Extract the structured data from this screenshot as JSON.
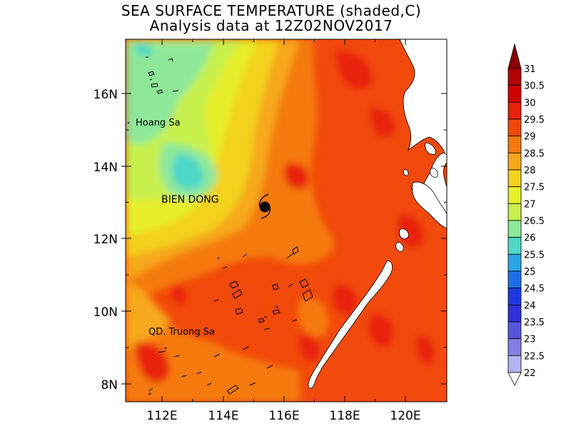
{
  "title": {
    "line1": "SEA SURFACE TEMPERATURE (shaded,C)",
    "line2": "Analysis data at 12Z02NOV2017"
  },
  "map": {
    "x_ticks": [
      "112E",
      "114E",
      "116E",
      "118E",
      "120E"
    ],
    "y_ticks": [
      "16N",
      "14N",
      "12N",
      "10N",
      "8N"
    ],
    "x_range_deg": [
      110.85,
      121.4
    ],
    "y_range_deg": [
      7.5,
      17.6
    ],
    "places": {
      "hoang_sa": "Hoang Sa",
      "bien_dong": "BIEN DONG",
      "truong_sa": "QD. Truong Sa"
    },
    "storm_marker": {
      "lon": 115.45,
      "lat": 12.85,
      "icon": "tropical-storm-icon"
    }
  },
  "colorbar": {
    "levels": [
      "31",
      "30.5",
      "30",
      "29.5",
      "29",
      "28.5",
      "28",
      "27.5",
      "27",
      "26.5",
      "26",
      "25.5",
      "25",
      "24.5",
      "24",
      "23.5",
      "23",
      "22.5",
      "22"
    ],
    "colors": [
      "#8b0000",
      "#b20000",
      "#d40000",
      "#e8200a",
      "#f24a0a",
      "#f57a0c",
      "#f7a81a",
      "#f2d21e",
      "#e6ee2c",
      "#c7f04e",
      "#8ee89a",
      "#4dd8c8",
      "#2aa6e6",
      "#1e6fe6",
      "#1a3ae0",
      "#3030d8",
      "#5555dd",
      "#8080e6",
      "#b4b4f0"
    ]
  },
  "theme": {
    "land": "#ffffff",
    "outline": "#000000"
  }
}
